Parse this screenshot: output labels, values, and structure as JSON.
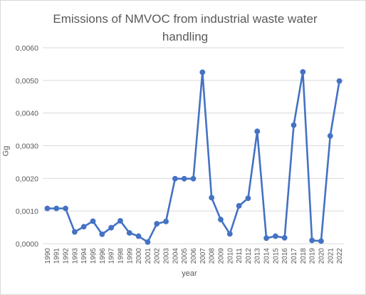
{
  "chart_data": {
    "type": "line",
    "title": "Emissions of NMVOC from industrial waste water handling",
    "xlabel": "year",
    "ylabel": "Gg",
    "ylim": [
      0,
      0.006
    ],
    "yticks": [
      "0,0000",
      "0,0010",
      "0,0020",
      "0,0030",
      "0,0040",
      "0,0050",
      "0,0060"
    ],
    "categories": [
      "1990",
      "1991",
      "1992",
      "1993",
      "1994",
      "1995",
      "1996",
      "1997",
      "1998",
      "1999",
      "2000",
      "2001",
      "2002",
      "2003",
      "2004",
      "2005",
      "2006",
      "2007",
      "2008",
      "2009",
      "2010",
      "2011",
      "2012",
      "2013",
      "2014",
      "2015",
      "2016",
      "2017",
      "2018",
      "2019",
      "2020",
      "2021",
      "2022"
    ],
    "series": [
      {
        "values": [
          0.00108,
          0.00108,
          0.00108,
          0.00036,
          0.00052,
          0.00069,
          0.00029,
          0.00049,
          0.0007,
          0.00033,
          0.00023,
          5e-05,
          0.00061,
          0.00068,
          0.00199,
          0.00199,
          0.00199,
          0.00525,
          0.00141,
          0.00074,
          0.0003,
          0.00116,
          0.00139,
          0.00344,
          0.00017,
          0.00023,
          0.00018,
          0.00363,
          0.00526,
          0.0001,
          8e-05,
          0.0033,
          0.00498
        ]
      }
    ],
    "grid": true,
    "legend": "none",
    "line_color": "#4472c4",
    "grid_color": "#d9d9d9",
    "text_color": "#595959"
  }
}
